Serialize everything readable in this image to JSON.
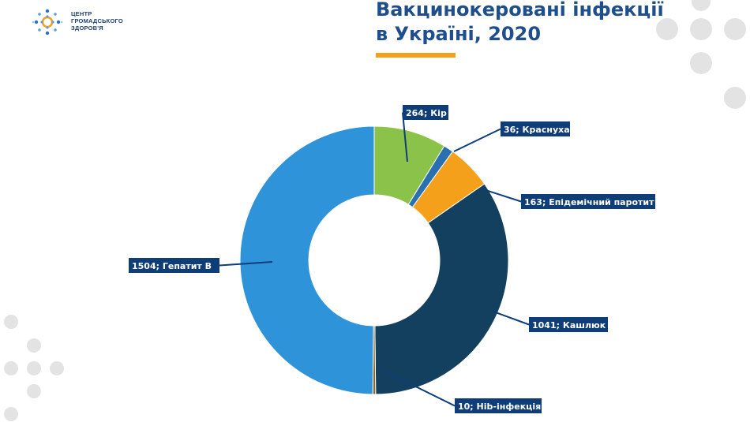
{
  "brand": {
    "logo_lines": [
      "ЦЕНТР",
      "ГРОМАДСЬКОГО",
      "ЗДОРОВ'Я"
    ],
    "accent": "#f5a01a",
    "primary": "#1f4e8c"
  },
  "chart_data": {
    "type": "pie",
    "variant": "donut",
    "title_lines": [
      "Вакцинокеровані інфекції",
      "в Україні, 2020"
    ],
    "slices": [
      {
        "name": "Кір",
        "value": 264,
        "label": "264; Кір",
        "color": "#8bc34a"
      },
      {
        "name": "Краснуха",
        "value": 36,
        "label": "36; Краснуха",
        "color": "#2a6fb0"
      },
      {
        "name": "Епідемічний паротит",
        "value": 163,
        "label": "163; Епідемічний паротит",
        "color": "#f5a01a"
      },
      {
        "name": "Кашлюк",
        "value": 1041,
        "label": "1041; Кашлюк",
        "color": "#13405f"
      },
      {
        "name": "Hib-інфекція",
        "value": 10,
        "label": "10; Hib-інфекція",
        "color": "#8a6a2a"
      },
      {
        "name": "Гепатит B",
        "value": 1504,
        "label": "1504; Гепатит B",
        "color": "#2f93d9"
      }
    ],
    "legend": "none",
    "label_bg": "#0f3d78"
  }
}
